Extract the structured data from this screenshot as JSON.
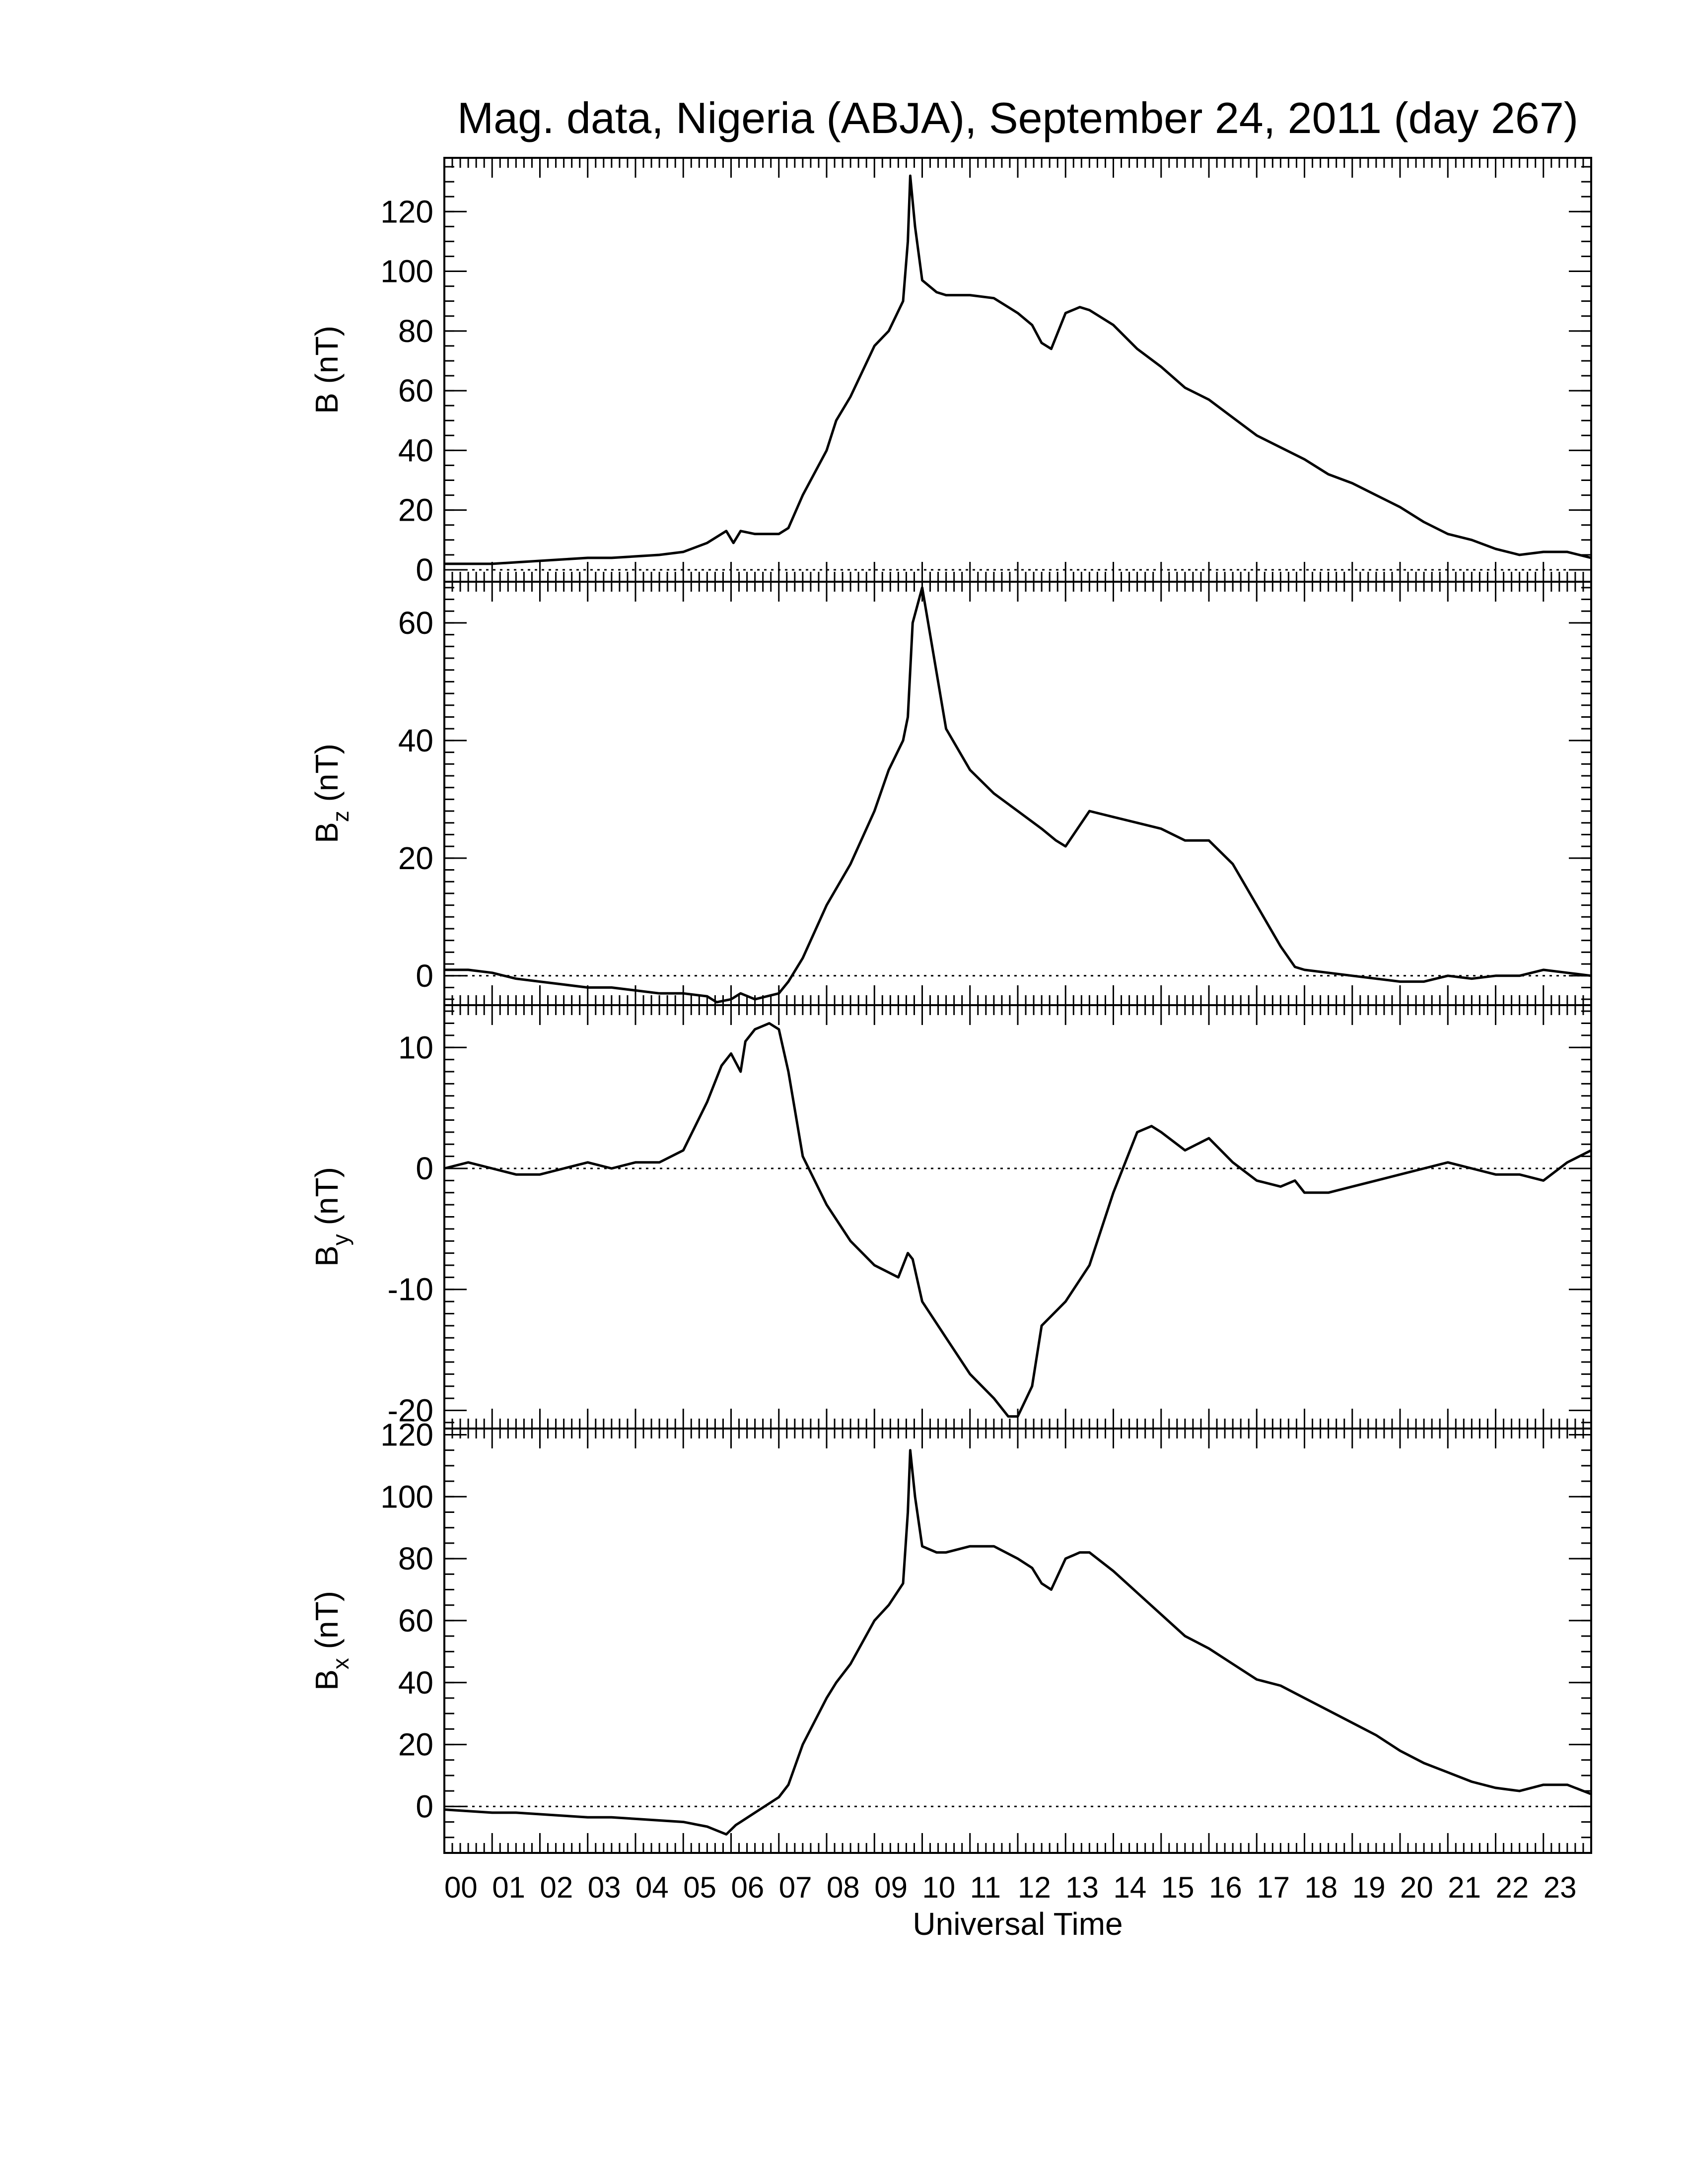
{
  "title": "Mag. data, Nigeria (ABJA), September 24, 2011 (day 267)",
  "xlabel": "Universal Time",
  "x_tick_labels": [
    "00",
    "01",
    "02",
    "03",
    "04",
    "05",
    "06",
    "07",
    "08",
    "09",
    "10",
    "11",
    "12",
    "13",
    "14",
    "15",
    "16",
    "17",
    "18",
    "19",
    "20",
    "21",
    "22",
    "23"
  ],
  "colors": {
    "line": "#000000",
    "zero_line": "#000000",
    "background": "#ffffff"
  },
  "chart_data": [
    {
      "type": "line",
      "panel": "B",
      "ylabel": "B (nT)",
      "ylabel_base": "B",
      "ylabel_sub": "",
      "ylabel_unit": " (nT)",
      "ylim": [
        -4,
        138
      ],
      "ytick_values": [
        0,
        20,
        40,
        60,
        80,
        100,
        120
      ],
      "ytick_labels": [
        "0",
        "20",
        "40",
        "60",
        "80",
        "100",
        "120"
      ],
      "xlim": [
        0,
        24
      ],
      "zero_line": true,
      "x": [
        0,
        0.5,
        1,
        1.5,
        2,
        2.5,
        3,
        3.5,
        4,
        4.5,
        5,
        5.5,
        5.9,
        6.05,
        6.2,
        6.5,
        7,
        7.2,
        7.5,
        8,
        8.2,
        8.5,
        9,
        9.3,
        9.6,
        9.7,
        9.75,
        9.85,
        10,
        10.3,
        10.5,
        11,
        11.5,
        12,
        12.3,
        12.5,
        12.7,
        13,
        13.3,
        13.5,
        14,
        14.5,
        15,
        15.5,
        16,
        16.5,
        17,
        17.5,
        18,
        18.5,
        19,
        19.5,
        20,
        20.5,
        21,
        21.5,
        22,
        22.5,
        23,
        23.5,
        24
      ],
      "values": [
        2,
        2,
        2,
        2.5,
        3,
        3.5,
        4,
        4,
        4.5,
        5,
        6,
        9,
        13,
        9,
        13,
        12,
        12,
        14,
        25,
        40,
        50,
        58,
        75,
        80,
        90,
        110,
        132,
        115,
        97,
        93,
        92,
        92,
        91,
        86,
        82,
        76,
        74,
        86,
        88,
        87,
        82,
        74,
        68,
        61,
        57,
        51,
        45,
        41,
        37,
        32,
        29,
        25,
        21,
        16,
        12,
        10,
        7,
        5,
        6,
        6,
        4
      ]
    },
    {
      "type": "line",
      "panel": "Bz",
      "ylabel": "Bz (nT)",
      "ylabel_base": "B",
      "ylabel_sub": "z",
      "ylabel_unit": " (nT)",
      "ylim": [
        -5,
        67
      ],
      "ytick_values": [
        0,
        20,
        40,
        60
      ],
      "ytick_labels": [
        "0",
        "20",
        "40",
        "60"
      ],
      "xlim": [
        0,
        24
      ],
      "zero_line": true,
      "x": [
        0,
        0.5,
        1,
        1.5,
        2,
        2.5,
        3,
        3.5,
        4,
        4.5,
        5,
        5.5,
        5.7,
        6,
        6.2,
        6.5,
        7,
        7.2,
        7.5,
        8,
        8.5,
        9,
        9.3,
        9.6,
        9.7,
        9.8,
        10,
        10.5,
        11,
        11.5,
        12,
        12.5,
        12.8,
        13,
        13.5,
        14,
        14.5,
        15,
        15.5,
        16,
        16.5,
        17,
        17.5,
        17.8,
        18,
        18.5,
        19,
        19.5,
        20,
        20.5,
        21,
        21.5,
        22,
        22.5,
        23,
        23.5,
        24
      ],
      "values": [
        1,
        1,
        0.5,
        -0.5,
        -1,
        -1.5,
        -2,
        -2,
        -2.5,
        -3,
        -3,
        -3.5,
        -4.5,
        -4,
        -3,
        -4,
        -3,
        -1,
        3,
        12,
        19,
        28,
        35,
        40,
        44,
        60,
        66,
        42,
        35,
        31,
        28,
        25,
        23,
        22,
        28,
        27,
        26,
        25,
        23,
        23,
        19,
        12,
        5,
        1.5,
        1,
        0.5,
        0,
        -0.5,
        -1,
        -1,
        0,
        -0.5,
        0,
        0,
        1,
        0.5,
        0
      ]
    },
    {
      "type": "line",
      "panel": "By",
      "ylabel": "By (nT)",
      "ylabel_base": "B",
      "ylabel_sub": "y",
      "ylabel_unit": " (nT)",
      "ylim": [
        -21.5,
        13.5
      ],
      "ytick_values": [
        -20,
        -10,
        0,
        10
      ],
      "ytick_labels": [
        "-20",
        "-10",
        "0",
        "10"
      ],
      "xlim": [
        0,
        24
      ],
      "zero_line": true,
      "x": [
        0,
        0.5,
        1,
        1.5,
        2,
        2.5,
        3,
        3.5,
        4,
        4.5,
        5,
        5.5,
        5.8,
        6,
        6.2,
        6.3,
        6.5,
        6.8,
        7,
        7.2,
        7.5,
        8,
        8.5,
        9,
        9.5,
        9.7,
        9.8,
        10,
        10.5,
        11,
        11.5,
        11.8,
        12,
        12.3,
        12.5,
        13,
        13.5,
        14,
        14.5,
        14.8,
        15,
        15.5,
        16,
        16.5,
        17,
        17.5,
        17.8,
        18,
        18.5,
        19,
        19.5,
        20,
        20.5,
        21,
        21.5,
        22,
        22.5,
        23,
        23.5,
        24
      ],
      "values": [
        0,
        0.5,
        0,
        -0.5,
        -0.5,
        0,
        0.5,
        0,
        0.5,
        0.5,
        1.5,
        5.5,
        8.5,
        9.5,
        8,
        10.5,
        11.5,
        12,
        11.5,
        8,
        1,
        -3,
        -6,
        -8,
        -9,
        -7,
        -7.5,
        -11,
        -14,
        -17,
        -19,
        -20.5,
        -20.5,
        -18,
        -13,
        -11,
        -8,
        -2,
        3,
        3.5,
        3,
        1.5,
        2.5,
        0.5,
        -1,
        -1.5,
        -1,
        -2,
        -2,
        -1.5,
        -1,
        -0.5,
        0,
        0.5,
        0,
        -0.5,
        -0.5,
        -1,
        0.5,
        1.5
      ]
    },
    {
      "type": "line",
      "panel": "Bx",
      "ylabel": "Bx (nT)",
      "ylabel_base": "B",
      "ylabel_sub": "x",
      "ylabel_unit": " (nT)",
      "ylim": [
        -15,
        122
      ],
      "ytick_values": [
        0,
        20,
        40,
        60,
        80,
        100,
        120
      ],
      "ytick_labels": [
        "0",
        "20",
        "40",
        "60",
        "80",
        "100",
        "120"
      ],
      "xlim": [
        0,
        24
      ],
      "zero_line": true,
      "x": [
        0,
        0.5,
        1,
        1.5,
        2,
        2.5,
        3,
        3.5,
        4,
        4.5,
        5,
        5.5,
        5.9,
        6.1,
        6.2,
        6.5,
        7,
        7.2,
        7.5,
        8,
        8.2,
        8.5,
        9,
        9.3,
        9.6,
        9.7,
        9.75,
        9.85,
        10,
        10.3,
        10.5,
        11,
        11.5,
        12,
        12.3,
        12.5,
        12.7,
        13,
        13.3,
        13.5,
        14,
        14.5,
        15,
        15.5,
        16,
        16.5,
        17,
        17.5,
        18,
        18.5,
        19,
        19.5,
        20,
        20.5,
        21,
        21.5,
        22,
        22.5,
        23,
        23.5,
        24
      ],
      "values": [
        -1,
        -1.5,
        -2,
        -2,
        -2.5,
        -3,
        -3.5,
        -3.5,
        -4,
        -4.5,
        -5,
        -6.5,
        -9,
        -6,
        -5,
        -2,
        3,
        7,
        20,
        35,
        40,
        46,
        60,
        65,
        72,
        95,
        115,
        100,
        84,
        82,
        82,
        84,
        84,
        80,
        77,
        72,
        70,
        80,
        82,
        82,
        76,
        69,
        62,
        55,
        51,
        46,
        41,
        39,
        35,
        31,
        27,
        23,
        18,
        14,
        11,
        8,
        6,
        5,
        7,
        7,
        4
      ]
    }
  ]
}
